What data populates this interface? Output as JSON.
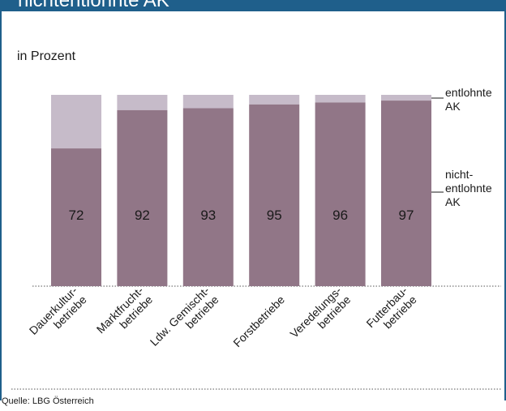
{
  "header": {
    "title": "nichtentlohnte AK"
  },
  "unit_label": "in Prozent",
  "source": "Quelle: LBG Österreich",
  "legend": [
    {
      "key": "entlohnt",
      "lines": [
        "entlohnte",
        "AK"
      ]
    },
    {
      "key": "nichtentlohnt",
      "lines": [
        "nicht-",
        "entlohnte",
        "AK"
      ]
    }
  ],
  "colors": {
    "header": "#1f5f8b",
    "nichtentlohnt": "#917687",
    "entlohnt": "#c6bbc9",
    "text": "#1a1a1a"
  },
  "chart_data": {
    "type": "bar",
    "stacked": true,
    "categories": [
      [
        "Dauerkultur-",
        "betriebe"
      ],
      [
        "Marktfrucht-",
        "betriebe"
      ],
      [
        "Ldw. Gemischt-",
        "betriebe"
      ],
      [
        "Forstbetriebe"
      ],
      [
        "Veredelungs-",
        "betriebe"
      ],
      [
        "Futterbau-",
        "betriebe"
      ]
    ],
    "series": [
      {
        "name": "nicht-entlohnte AK",
        "values": [
          72,
          92,
          93,
          95,
          96,
          97
        ]
      },
      {
        "name": "entlohnte AK",
        "values": [
          28,
          8,
          7,
          5,
          4,
          3
        ]
      }
    ],
    "ylim": [
      0,
      100
    ],
    "ylabel": "in Prozent"
  }
}
